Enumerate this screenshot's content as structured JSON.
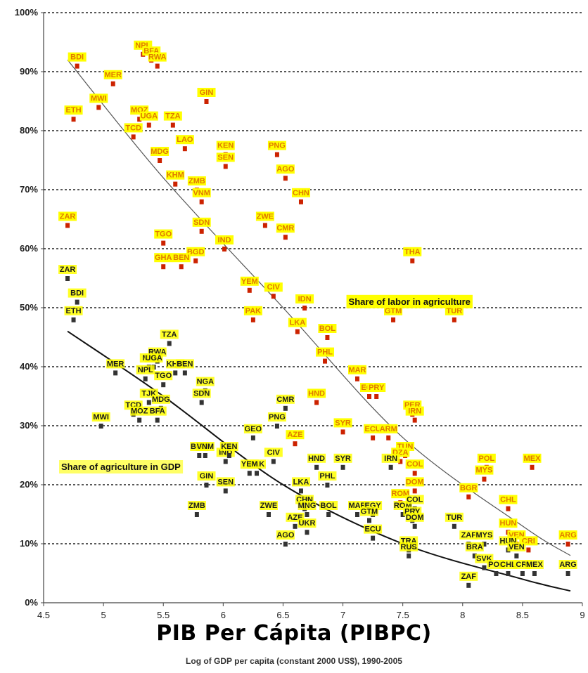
{
  "overlay_title": "PIB Per Cápita (PIBPC)",
  "chart_data": {
    "type": "scatter",
    "xlabel": "Log of GDP per capita (constant 2000 US$), 1990-2005",
    "ylabel": "",
    "xlim": [
      4.5,
      9
    ],
    "ylim": [
      0,
      100
    ],
    "x_ticks": [
      "4.5",
      "5",
      "5.5",
      "6",
      "6.5",
      "7",
      "7.5",
      "8",
      "8.5",
      "9"
    ],
    "y_ticks": [
      "0%",
      "10%",
      "20%",
      "30%",
      "40%",
      "50%",
      "60%",
      "70%",
      "80%",
      "90%",
      "100%"
    ],
    "grid": "horizontal dotted",
    "colors": {
      "labor_label_bg": "#ffff00",
      "labor_label_text": "#e07a00",
      "labor_point": "#cc2200",
      "gdp_label_text": "#1a1a1a",
      "gdp_point": "#333333"
    },
    "annotations": [
      {
        "text": "Share of labor in agriculture",
        "x": 7.0,
        "y": 50.5
      },
      {
        "text": "Share of agriculture in GDP",
        "x": 4.6,
        "y": 22.5
      }
    ],
    "trendlines": [
      {
        "series": "labor",
        "points": [
          [
            4.7,
            92
          ],
          [
            5.5,
            72
          ],
          [
            6.5,
            50
          ],
          [
            7.5,
            28
          ],
          [
            8.5,
            13
          ],
          [
            8.9,
            8
          ]
        ]
      },
      {
        "series": "gdp",
        "points": [
          [
            4.7,
            46
          ],
          [
            5.5,
            35
          ],
          [
            6.5,
            20
          ],
          [
            7.5,
            10
          ],
          [
            8.5,
            4
          ],
          [
            8.9,
            2
          ]
        ]
      }
    ],
    "series": [
      {
        "name": "Share of labor in agriculture",
        "points": [
          {
            "label": "BDI",
            "x": 4.78,
            "y": 91
          },
          {
            "label": "MER",
            "x": 5.08,
            "y": 88
          },
          {
            "label": "NPL",
            "x": 5.33,
            "y": 93
          },
          {
            "label": "BFA",
            "x": 5.4,
            "y": 92
          },
          {
            "label": "RWA",
            "x": 5.45,
            "y": 91
          },
          {
            "label": "MWI",
            "x": 4.96,
            "y": 84
          },
          {
            "label": "ETH",
            "x": 4.75,
            "y": 82
          },
          {
            "label": "MOZ",
            "x": 5.3,
            "y": 82
          },
          {
            "label": "UGA",
            "x": 5.38,
            "y": 81
          },
          {
            "label": "TZA",
            "x": 5.58,
            "y": 81
          },
          {
            "label": "GIN",
            "x": 5.86,
            "y": 85
          },
          {
            "label": "TCD",
            "x": 5.25,
            "y": 79
          },
          {
            "label": "LAO",
            "x": 5.68,
            "y": 77
          },
          {
            "label": "MDG",
            "x": 5.47,
            "y": 75
          },
          {
            "label": "KEN",
            "x": 6.02,
            "y": 76
          },
          {
            "label": "SEN",
            "x": 6.02,
            "y": 74
          },
          {
            "label": "PNG",
            "x": 6.45,
            "y": 76
          },
          {
            "label": "AGO",
            "x": 6.52,
            "y": 72
          },
          {
            "label": "KHM",
            "x": 5.6,
            "y": 71
          },
          {
            "label": "ZMB",
            "x": 5.78,
            "y": 70
          },
          {
            "label": "VNM",
            "x": 5.82,
            "y": 68
          },
          {
            "label": "CHN",
            "x": 6.65,
            "y": 68
          },
          {
            "label": "ZAR",
            "x": 4.7,
            "y": 64
          },
          {
            "label": "SDN",
            "x": 5.82,
            "y": 63
          },
          {
            "label": "ZWE",
            "x": 6.35,
            "y": 64
          },
          {
            "label": "CMR",
            "x": 6.52,
            "y": 62
          },
          {
            "label": "TGO",
            "x": 5.5,
            "y": 61
          },
          {
            "label": "IND",
            "x": 6.01,
            "y": 60
          },
          {
            "label": "BGD",
            "x": 5.77,
            "y": 58
          },
          {
            "label": "BEN",
            "x": 5.65,
            "y": 57
          },
          {
            "label": "GHA",
            "x": 5.5,
            "y": 57
          },
          {
            "label": "THA",
            "x": 7.58,
            "y": 58
          },
          {
            "label": "YEM",
            "x": 6.22,
            "y": 53
          },
          {
            "label": "CIV",
            "x": 6.42,
            "y": 52
          },
          {
            "label": "PAK",
            "x": 6.25,
            "y": 48
          },
          {
            "label": "IDN",
            "x": 6.68,
            "y": 50
          },
          {
            "label": "LKA",
            "x": 6.62,
            "y": 46
          },
          {
            "label": "GTM",
            "x": 7.42,
            "y": 48
          },
          {
            "label": "TUR",
            "x": 7.93,
            "y": 48
          },
          {
            "label": "BOL",
            "x": 6.87,
            "y": 45
          },
          {
            "label": "PHL",
            "x": 6.85,
            "y": 41
          },
          {
            "label": "MAR",
            "x": 7.12,
            "y": 38
          },
          {
            "label": "EGY",
            "x": 7.22,
            "y": 35
          },
          {
            "label": "PRY",
            "x": 7.28,
            "y": 35
          },
          {
            "label": "HND",
            "x": 6.78,
            "y": 34
          },
          {
            "label": "PER",
            "x": 7.58,
            "y": 32
          },
          {
            "label": "IRN",
            "x": 7.6,
            "y": 31
          },
          {
            "label": "SYR",
            "x": 7.0,
            "y": 29
          },
          {
            "label": "ECU",
            "x": 7.25,
            "y": 28
          },
          {
            "label": "ARM",
            "x": 7.38,
            "y": 28
          },
          {
            "label": "AZE",
            "x": 6.6,
            "y": 27
          },
          {
            "label": "TUN",
            "x": 7.52,
            "y": 25
          },
          {
            "label": "DZA",
            "x": 7.48,
            "y": 24
          },
          {
            "label": "COL",
            "x": 7.6,
            "y": 22
          },
          {
            "label": "POL",
            "x": 8.2,
            "y": 23
          },
          {
            "label": "MEX",
            "x": 8.58,
            "y": 23
          },
          {
            "label": "MYS",
            "x": 8.18,
            "y": 21
          },
          {
            "label": "DOM",
            "x": 7.6,
            "y": 19
          },
          {
            "label": "ROM",
            "x": 7.48,
            "y": 17
          },
          {
            "label": "BGR",
            "x": 8.05,
            "y": 18
          },
          {
            "label": "CHL",
            "x": 8.38,
            "y": 16
          },
          {
            "label": "HUN",
            "x": 8.38,
            "y": 12
          },
          {
            "label": "VEN",
            "x": 8.45,
            "y": 10
          },
          {
            "label": "CRI",
            "x": 8.55,
            "y": 9
          },
          {
            "label": "ARG",
            "x": 8.88,
            "y": 10
          }
        ]
      },
      {
        "name": "Share of agriculture in GDP",
        "points": [
          {
            "label": "ZAR",
            "x": 4.7,
            "y": 55
          },
          {
            "label": "BDI",
            "x": 4.78,
            "y": 51
          },
          {
            "label": "ETH",
            "x": 4.75,
            "y": 48
          },
          {
            "label": "TZA",
            "x": 5.55,
            "y": 44
          },
          {
            "label": "RWA",
            "x": 5.45,
            "y": 41
          },
          {
            "label": "MLI",
            "x": 5.38,
            "y": 40
          },
          {
            "label": "UGA",
            "x": 5.42,
            "y": 40
          },
          {
            "label": "KHM",
            "x": 5.6,
            "y": 39
          },
          {
            "label": "BEN",
            "x": 5.68,
            "y": 39
          },
          {
            "label": "MER",
            "x": 5.1,
            "y": 39
          },
          {
            "label": "NPL",
            "x": 5.35,
            "y": 38
          },
          {
            "label": "TGO",
            "x": 5.5,
            "y": 37
          },
          {
            "label": "NGA",
            "x": 5.85,
            "y": 36
          },
          {
            "label": "SDN",
            "x": 5.82,
            "y": 34
          },
          {
            "label": "TJK",
            "x": 5.38,
            "y": 34
          },
          {
            "label": "MDG",
            "x": 5.48,
            "y": 33
          },
          {
            "label": "CMR",
            "x": 6.52,
            "y": 33
          },
          {
            "label": "TCD",
            "x": 5.25,
            "y": 32
          },
          {
            "label": "BFA",
            "x": 5.45,
            "y": 31
          },
          {
            "label": "MOZ",
            "x": 5.3,
            "y": 31
          },
          {
            "label": "PNG",
            "x": 6.45,
            "y": 30
          },
          {
            "label": "MWI",
            "x": 4.98,
            "y": 30
          },
          {
            "label": "GEO",
            "x": 6.25,
            "y": 28
          },
          {
            "label": "BGD",
            "x": 5.8,
            "y": 25
          },
          {
            "label": "VNM",
            "x": 5.85,
            "y": 25
          },
          {
            "label": "IND",
            "x": 6.02,
            "y": 24
          },
          {
            "label": "KEN",
            "x": 6.05,
            "y": 25
          },
          {
            "label": "CIV",
            "x": 6.42,
            "y": 24
          },
          {
            "label": "PAK",
            "x": 6.28,
            "y": 22
          },
          {
            "label": "YEM",
            "x": 6.22,
            "y": 22
          },
          {
            "label": "HND",
            "x": 6.78,
            "y": 23
          },
          {
            "label": "SYR",
            "x": 7.0,
            "y": 23
          },
          {
            "label": "IRN",
            "x": 7.4,
            "y": 23
          },
          {
            "label": "GIN",
            "x": 5.86,
            "y": 20
          },
          {
            "label": "SEN",
            "x": 6.02,
            "y": 19
          },
          {
            "label": "PHL",
            "x": 6.87,
            "y": 20
          },
          {
            "label": "LKA",
            "x": 6.65,
            "y": 19
          },
          {
            "label": "CHN",
            "x": 6.68,
            "y": 16
          },
          {
            "label": "MNG",
            "x": 6.7,
            "y": 15
          },
          {
            "label": "ZMB",
            "x": 5.78,
            "y": 15
          },
          {
            "label": "ZWE",
            "x": 6.38,
            "y": 15
          },
          {
            "label": "BOL",
            "x": 6.88,
            "y": 15
          },
          {
            "label": "MAR",
            "x": 7.12,
            "y": 15
          },
          {
            "label": "EGY",
            "x": 7.25,
            "y": 15
          },
          {
            "label": "GTM",
            "x": 7.22,
            "y": 14
          },
          {
            "label": "AZE",
            "x": 6.6,
            "y": 13
          },
          {
            "label": "UKR",
            "x": 6.7,
            "y": 12
          },
          {
            "label": "ROM",
            "x": 7.5,
            "y": 15
          },
          {
            "label": "COL",
            "x": 7.6,
            "y": 16
          },
          {
            "label": "PRY",
            "x": 7.58,
            "y": 14
          },
          {
            "label": "DOM",
            "x": 7.6,
            "y": 13
          },
          {
            "label": "TUR",
            "x": 7.93,
            "y": 13
          },
          {
            "label": "ECU",
            "x": 7.25,
            "y": 11
          },
          {
            "label": "ZAF",
            "x": 8.05,
            "y": 10
          },
          {
            "label": "MYS",
            "x": 8.18,
            "y": 10
          },
          {
            "label": "HUN",
            "x": 8.38,
            "y": 9
          },
          {
            "label": "AGO",
            "x": 6.52,
            "y": 10
          },
          {
            "label": "BRA",
            "x": 8.1,
            "y": 8
          },
          {
            "label": "TRA",
            "x": 7.55,
            "y": 9
          },
          {
            "label": "RUS",
            "x": 7.55,
            "y": 8
          },
          {
            "label": "VEN",
            "x": 8.45,
            "y": 8
          },
          {
            "label": "SVK",
            "x": 8.18,
            "y": 6
          },
          {
            "label": "POL",
            "x": 8.28,
            "y": 5
          },
          {
            "label": "CHL",
            "x": 8.38,
            "y": 5
          },
          {
            "label": "CRI",
            "x": 8.5,
            "y": 5
          },
          {
            "label": "MEX",
            "x": 8.6,
            "y": 5
          },
          {
            "label": "ARG",
            "x": 8.88,
            "y": 5
          },
          {
            "label": "ZAF",
            "x": 8.05,
            "y": 3
          }
        ]
      }
    ]
  }
}
